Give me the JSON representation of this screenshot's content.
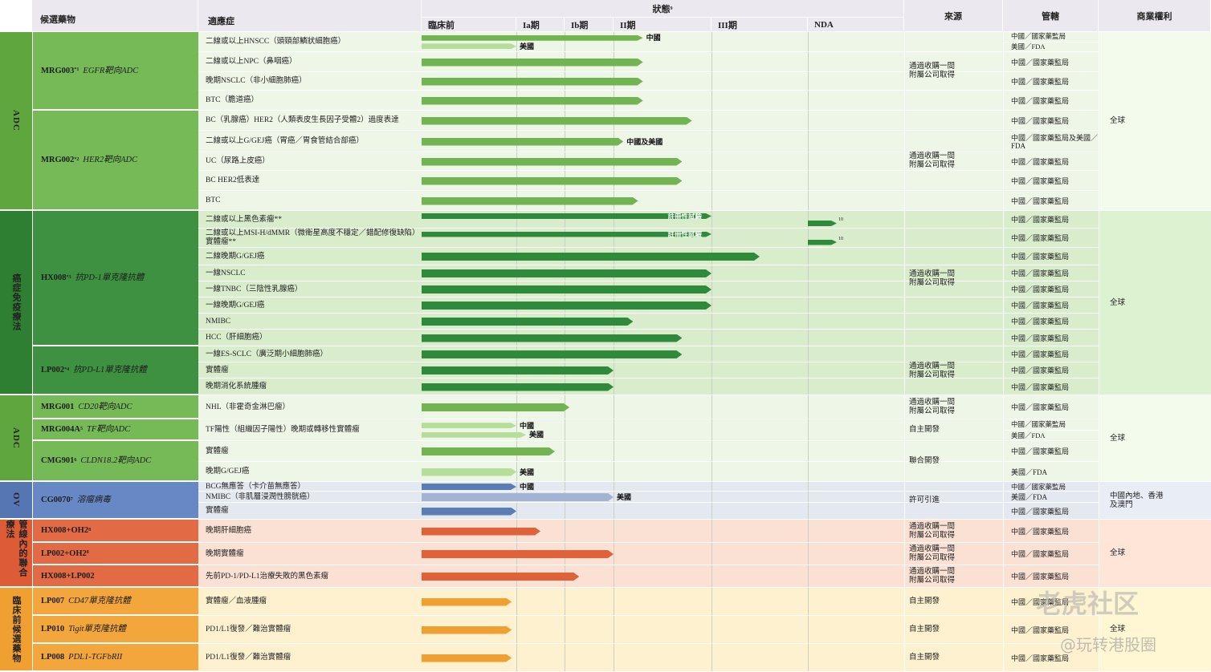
{
  "header": {
    "candidate": "候選藥物",
    "indication": "適應症",
    "status": "狀態",
    "status_note": "9",
    "stages": [
      "臨床前",
      "Ia期",
      "Ib期",
      "II期",
      "III期",
      "NDA"
    ],
    "source": "來源",
    "jurisdiction": "管轄",
    "rights": "商業權利"
  },
  "categories": [
    {
      "label": "ADC",
      "rows": [
        0,
        8
      ],
      "color": "#5fa63f",
      "candidate_color": "#76ba58",
      "row_bg": "#eef6e7",
      "bar_color": "#72b352",
      "light_bar_color": "#b7de98"
    },
    {
      "label": "癌症免疫療法",
      "rows": [
        9,
        19
      ],
      "color": "#2f7f33",
      "candidate_color": "#3e9140",
      "row_bg": "#d9edcc",
      "bar_color": "#2f8a3c",
      "light_bar_color": "#8cc88a"
    },
    {
      "label": "ADC",
      "rows": [
        20,
        23
      ],
      "color": "#5fa63f",
      "candidate_color": "#76ba58",
      "row_bg": "#eef6e7",
      "bar_color": "#72b352",
      "light_bar_color": "#b7de98"
    },
    {
      "label": "OV",
      "rows": [
        24,
        26
      ],
      "color": "#5575b3",
      "candidate_color": "#6788c4",
      "row_bg": "#e4e8f1",
      "bar_color": "#5b7db5",
      "light_bar_color": "#a2b3d3"
    },
    {
      "label": "管線內的聯合療法",
      "rows": [
        27,
        29
      ],
      "color": "#dd5c35",
      "candidate_color": "#e26a44",
      "row_bg": "#fbe0d4",
      "bar_color": "#e0623a",
      "light_bar_color": "#f0a48a"
    },
    {
      "label": "臨床前候選藥物",
      "rows": [
        30,
        32
      ],
      "color": "#f0a030",
      "candidate_color": "#f3a63c",
      "row_bg": "#fdf1cf",
      "bar_color": "#f0a030",
      "light_bar_color": "#f7cf8a"
    }
  ],
  "candidates": [
    {
      "name": "MRG003",
      "sup": "*1",
      "target": "EGFR靶向ADC",
      "rows": [
        0,
        3
      ]
    },
    {
      "name": "MRG002",
      "sup": "*2",
      "target": "HER2靶向ADC",
      "rows": [
        4,
        8
      ]
    },
    {
      "name": "HX008",
      "sup": "*3",
      "target": "抗PD-1單克隆抗體",
      "rows": [
        9,
        16
      ]
    },
    {
      "name": "LP002",
      "sup": "*4",
      "target": "抗PD-L1單克隆抗體",
      "rows": [
        17,
        19
      ]
    },
    {
      "name": "MRG001",
      "target": "CD20靶向ADC",
      "rows": [
        20,
        20
      ]
    },
    {
      "name": "MRG004A",
      "sup": "5",
      "target": "TF靶向ADC",
      "rows": [
        21,
        21
      ]
    },
    {
      "name": "CMG901",
      "sup": "6",
      "target": "CLDN18.2靶向ADC",
      "rows": [
        22,
        23
      ]
    },
    {
      "name": "CG0070",
      "sup": "7",
      "target": "溶瘤病毒",
      "rows": [
        24,
        26
      ]
    },
    {
      "name": "HX008+OH2",
      "sup": "8",
      "rows": [
        27,
        27
      ]
    },
    {
      "name": "LP002+OH2",
      "sup": "8",
      "rows": [
        28,
        28
      ]
    },
    {
      "name": "HX008+LP002",
      "rows": [
        29,
        29
      ]
    },
    {
      "name": "LP007",
      "target": "CD47單克隆抗體",
      "rows": [
        30,
        30
      ]
    },
    {
      "name": "LP010",
      "target": "Tigit單克隆抗體",
      "rows": [
        31,
        31
      ]
    },
    {
      "name": "LP008",
      "target": "PDL1-TGFbRII",
      "rows": [
        32,
        32
      ]
    }
  ],
  "sources": [
    {
      "text": "通過收購一間附屬公司取得",
      "rows": [
        0,
        3
      ]
    },
    {
      "text": "通過收購一間附屬公司取得",
      "rows": [
        4,
        8
      ]
    },
    {
      "text": "通過收購一間附屬公司取得",
      "rows": [
        9,
        16
      ]
    },
    {
      "text": "通過收購一間附屬公司取得",
      "rows": [
        17,
        19
      ]
    },
    {
      "text": "通過收購一間附屬公司取得",
      "rows": [
        20,
        20
      ]
    },
    {
      "text": "自主開發",
      "rows": [
        21,
        21
      ]
    },
    {
      "text": "聯合開發",
      "rows": [
        22,
        23
      ]
    },
    {
      "text": "許可引進",
      "rows": [
        24,
        26
      ]
    },
    {
      "text": "通過收購一間附屬公司取得",
      "rows": [
        27,
        27
      ]
    },
    {
      "text": "通過收購一間附屬公司取得",
      "rows": [
        28,
        28
      ]
    },
    {
      "text": "通過收購一間附屬公司取得",
      "rows": [
        29,
        29
      ]
    },
    {
      "text": "自主開發",
      "rows": [
        30,
        30
      ]
    },
    {
      "text": "自主開發",
      "rows": [
        31,
        31
      ]
    },
    {
      "text": "自主開發",
      "rows": [
        32,
        32
      ]
    }
  ],
  "rights": [
    {
      "text": "全球",
      "rows": [
        0,
        8
      ]
    },
    {
      "text": "全球",
      "rows": [
        9,
        19
      ]
    },
    {
      "text": "全球",
      "rows": [
        20,
        23
      ]
    },
    {
      "text": "中國內地、香港及澳門",
      "rows": [
        24,
        26
      ]
    },
    {
      "text": "全球",
      "rows": [
        27,
        29
      ]
    },
    {
      "text": "全球",
      "rows": [
        30,
        32
      ]
    }
  ],
  "rows": [
    {
      "indication": "二線或以上HNSCC（頭頸部鱗狀細胞癌）",
      "bars": [
        {
          "end": 3.3,
          "label": "中國"
        },
        {
          "end": 1.0,
          "label": "美國",
          "light": true
        }
      ],
      "regulators": [
        "中國／國家藥監局",
        "美國／FDA"
      ]
    },
    {
      "indication": "二線或以上NPC（鼻咽癌）",
      "bars": [
        {
          "end": 3.3
        }
      ],
      "regulators": [
        "中國／國家藥監局"
      ]
    },
    {
      "indication": "晚期NSCLC（非小細胞肺癌）",
      "bars": [
        {
          "end": 3.3
        }
      ],
      "regulators": [
        "中國／國家藥監局"
      ]
    },
    {
      "indication": "BTC（膽道癌）",
      "bars": [
        {
          "end": 3.3
        }
      ],
      "regulators": [
        "中國／國家藥監局"
      ]
    },
    {
      "indication": "BC（乳腺癌）HER2（人類表皮生長因子受體2）過度表達",
      "bars": [
        {
          "end": 3.8
        }
      ],
      "regulators": [
        "中國／國家藥監局"
      ]
    },
    {
      "indication": "二線或以上G/GEJ癌（胃癌／胃食管結合部癌）",
      "bars": [
        {
          "end": 3.1,
          "label": "中國及美國"
        }
      ],
      "regulators": [
        "中國／國家藥監局及美國／FDA"
      ]
    },
    {
      "indication": "UC（尿路上皮癌）",
      "bars": [
        {
          "end": 3.7
        }
      ],
      "regulators": [
        "中國／國家藥監局"
      ]
    },
    {
      "indication": "BC HER2低表達",
      "bars": [
        {
          "end": 3.7
        }
      ],
      "regulators": [
        "中國／國家藥監局"
      ]
    },
    {
      "indication": "BTC",
      "bars": [
        {
          "end": 3.25
        }
      ],
      "regulators": [
        "中國／國家藥監局"
      ]
    },
    {
      "indication": "二線或以上黑色素瘤**",
      "bars": [
        {
          "end": 4.0,
          "inner": "註冊性試驗"
        },
        {
          "start": 5,
          "end": 5.3,
          "note": "10"
        }
      ],
      "regulators": [
        "中國／國家藥監局"
      ]
    },
    {
      "indication": "二線或以上MSI-H/dMMR（微衛星高度不穩定／錯配修復缺陷）實體瘤**",
      "bars": [
        {
          "end": 4.0,
          "inner": "註冊性試驗"
        },
        {
          "start": 5,
          "end": 5.3,
          "note": "10"
        }
      ],
      "regulators": [
        "中國／國家藥監局"
      ]
    },
    {
      "indication": "二線晚期G/GEJ癌",
      "bars": [
        {
          "end": 4.5
        }
      ],
      "regulators": [
        "中國／國家藥監局"
      ]
    },
    {
      "indication": "一線NSCLC",
      "bars": [
        {
          "end": 4.0
        }
      ],
      "regulators": [
        "中國／國家藥監局"
      ]
    },
    {
      "indication": "一線TNBC（三陰性乳腺癌）",
      "bars": [
        {
          "end": 4.0
        }
      ],
      "regulators": [
        "中國／國家藥監局"
      ]
    },
    {
      "indication": "一線晚期G/GEJ癌",
      "bars": [
        {
          "end": 4.0
        }
      ],
      "regulators": [
        "中國／國家藥監局"
      ]
    },
    {
      "indication": "NMIBC",
      "bars": [
        {
          "end": 3.2
        }
      ],
      "regulators": [
        "中國／國家藥監局"
      ]
    },
    {
      "indication": "HCC（肝細胞癌）",
      "bars": [
        {
          "end": 3.7
        }
      ],
      "regulators": [
        "中國／國家藥監局"
      ]
    },
    {
      "indication": "一線ES-SCLC（廣泛期小細胞肺癌）",
      "bars": [
        {
          "end": 3.7
        }
      ],
      "regulators": [
        "中國／國家藥監局"
      ]
    },
    {
      "indication": "實體瘤",
      "bars": [
        {
          "end": 3.0
        }
      ],
      "regulators": [
        "中國／國家藥監局"
      ]
    },
    {
      "indication": "晚期消化系統腫瘤",
      "bars": [
        {
          "end": 3.0
        }
      ],
      "regulators": [
        "中國／國家藥監局"
      ]
    },
    {
      "indication": "NHL（非霍奇金淋巴瘤）",
      "bars": [
        {
          "end": 2.1
        }
      ],
      "regulators": [
        "中國／國家藥監局"
      ]
    },
    {
      "indication": "TF陽性（組織因子陽性）晚期或轉移性實體瘤",
      "bars": [
        {
          "end": 1.0,
          "label": "中國",
          "light": true
        },
        {
          "end": 1.2,
          "label": "美國",
          "light": true
        }
      ],
      "regulators": [
        "中國／國家藥監局",
        "美國／FDA"
      ]
    },
    {
      "indication": "實體瘤",
      "bars": [
        {
          "end": 1.8
        }
      ],
      "regulators": [
        "中國／國家藥監局"
      ]
    },
    {
      "indication": "晚期G/GEJ癌",
      "bars": [
        {
          "end": 1.0,
          "label": "美國",
          "light": true
        }
      ],
      "regulators": [
        "美國／FDA"
      ]
    },
    {
      "indication": "BCG無應答（卡介苗無應答）",
      "bars": [
        {
          "end": 1.0,
          "label": "中國"
        }
      ],
      "regulators": [
        "中國／國家藥監局"
      ]
    },
    {
      "indication": "NMIBC（非肌層浸潤性膀胱癌）",
      "bars": [
        {
          "end": 3.0,
          "label": "美國",
          "light": true
        }
      ],
      "regulators": [
        "美國／FDA"
      ]
    },
    {
      "indication": "實體瘤",
      "bars": [
        {
          "end": 1.0
        }
      ],
      "regulators": [
        "中國／國家藥監局"
      ]
    },
    {
      "indication": "晚期肝細胞癌",
      "bars": [
        {
          "end": 1.5
        }
      ],
      "regulators": [
        "中國／國家藥監局"
      ]
    },
    {
      "indication": "晚期實體瘤",
      "bars": [
        {
          "end": 3.0
        }
      ],
      "regulators": [
        "中國／國家藥監局"
      ]
    },
    {
      "indication": "先前PD-1/PD-L1治療失敗的黑色素瘤",
      "bars": [
        {
          "end": 2.3
        }
      ],
      "regulators": [
        "中國／國家藥監局"
      ]
    },
    {
      "indication": "實體瘤／血液腫瘤",
      "bars": [
        {
          "end": 0.95
        }
      ],
      "regulators": [
        "中國／國家藥監局"
      ]
    },
    {
      "indication": "PD1/L1復發／難治實體瘤",
      "bars": [
        {
          "end": 0.95
        }
      ],
      "regulators": [
        "中國／國家藥監局"
      ]
    },
    {
      "indication": "PD1/L1復發／難治實體瘤",
      "bars": [
        {
          "end": 0.95
        }
      ],
      "regulators": [
        "中國／國家藥監局"
      ]
    }
  ],
  "watermark": [
    "老虎社区",
    "@玩转港股圈"
  ]
}
